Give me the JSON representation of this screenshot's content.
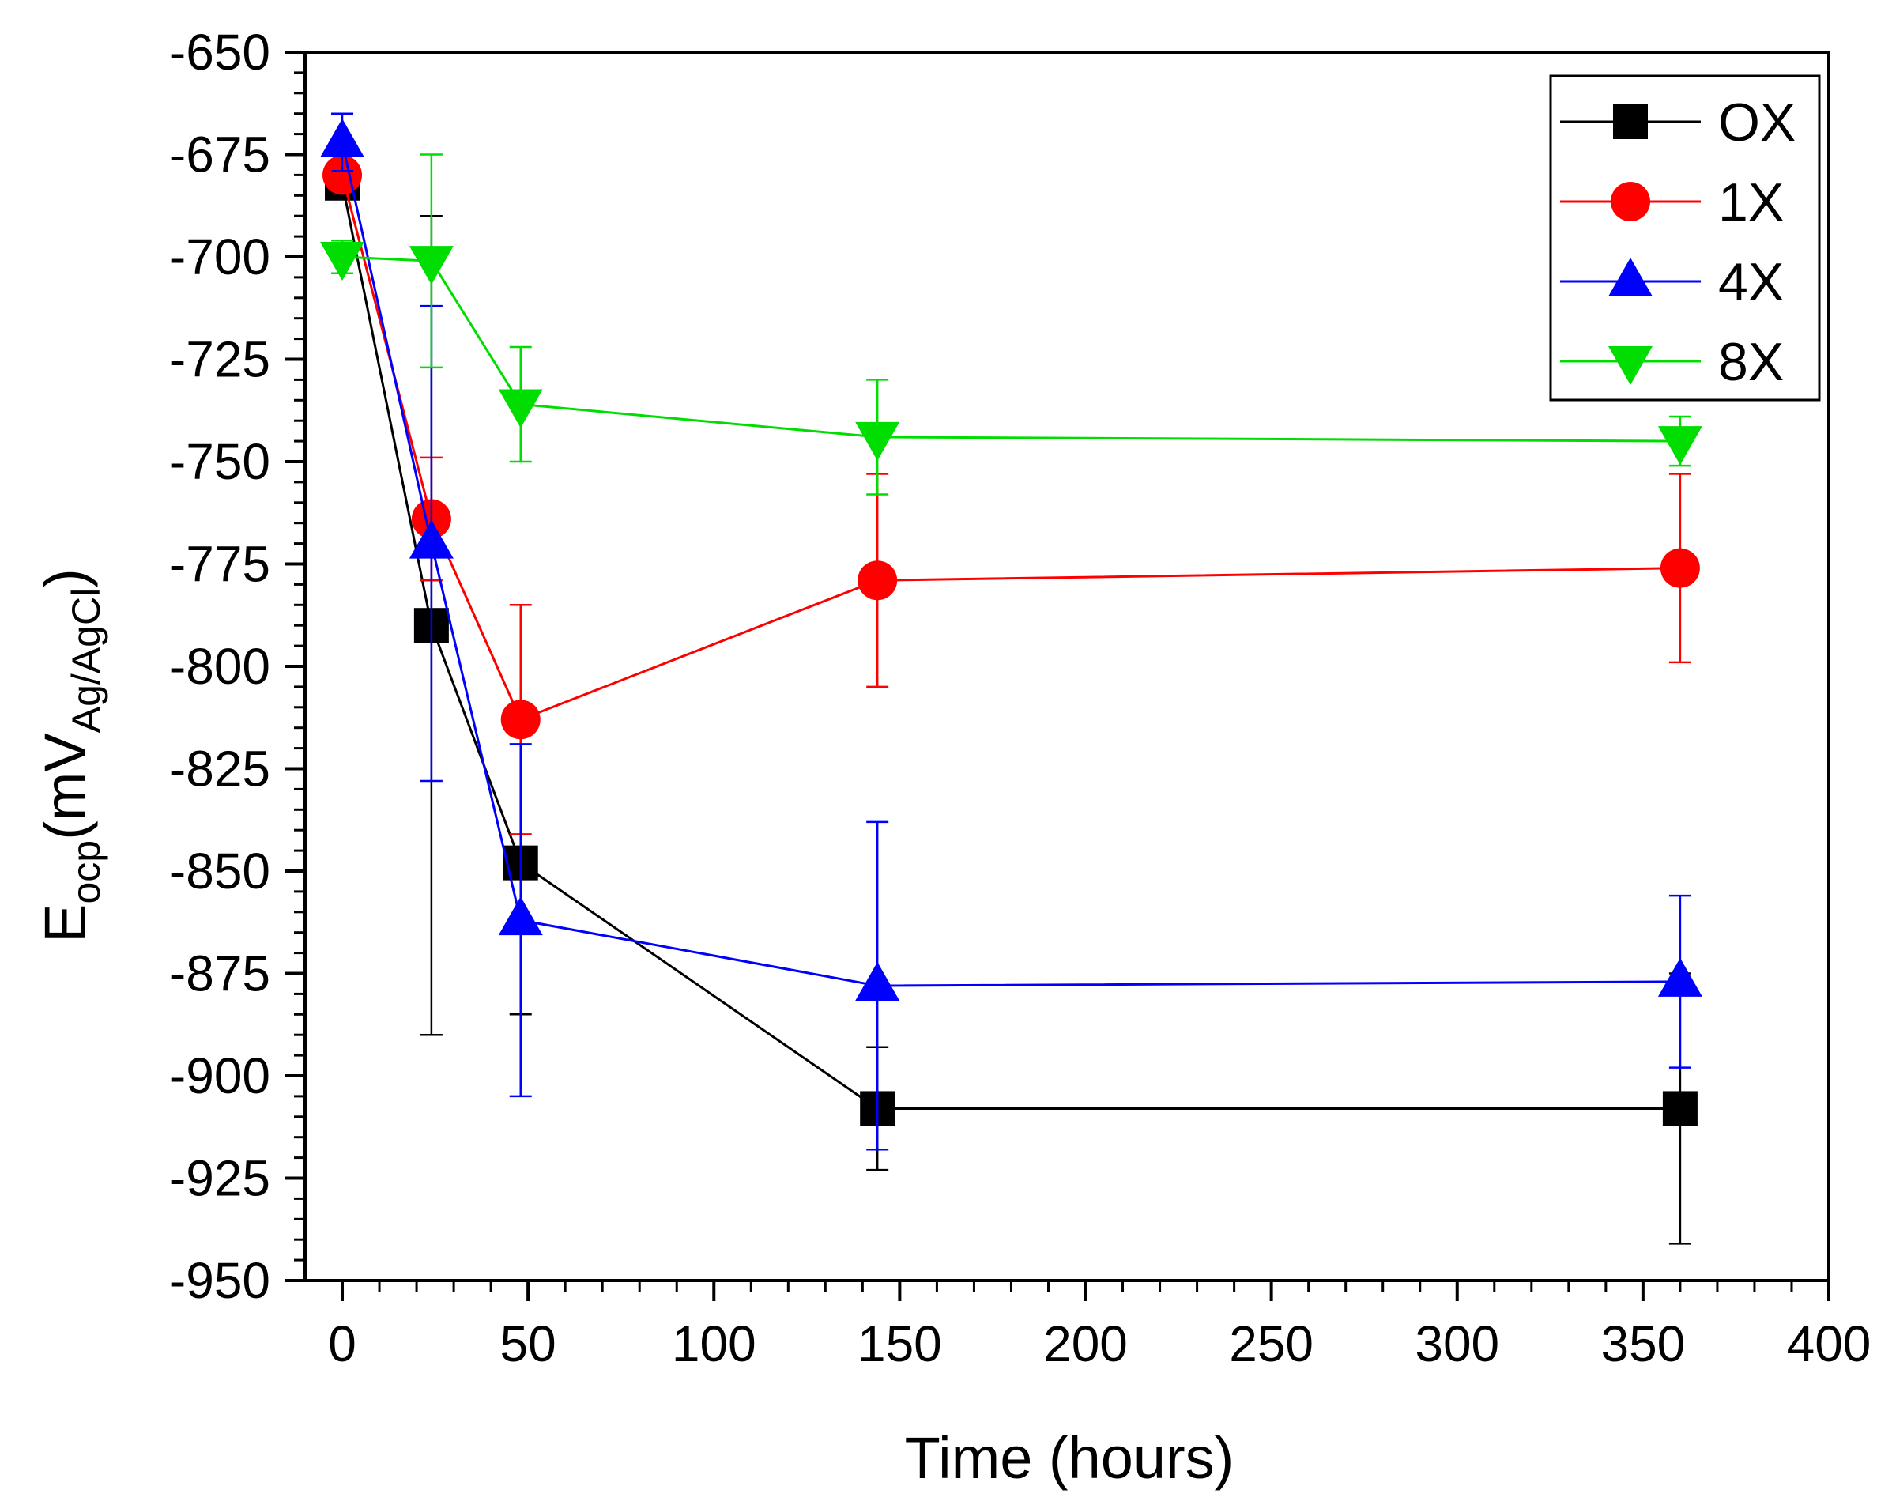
{
  "chart_data": {
    "type": "line",
    "title": "",
    "xlabel": "Time (hours)",
    "ylabel": {
      "main": "E",
      "main_sub": "ocp",
      "unit_open": "(mV",
      "unit_sub": "Ag/AgCl",
      "unit_close": ")"
    },
    "xlim": [
      -10,
      400
    ],
    "ylim": [
      -950,
      -650
    ],
    "x_ticks": [
      0,
      50,
      100,
      150,
      200,
      250,
      300,
      350,
      400
    ],
    "y_ticks": [
      -650,
      -675,
      -700,
      -725,
      -750,
      -775,
      -800,
      -825,
      -850,
      -875,
      -900,
      -925,
      -950
    ],
    "grid": false,
    "legend_position": "top-right",
    "series": [
      {
        "name": "OX",
        "color": "#000000",
        "marker": "square",
        "x": [
          0,
          24,
          48,
          144,
          360
        ],
        "y": [
          -682,
          -790,
          -848,
          -908,
          -908
        ],
        "err": [
          0,
          100,
          37,
          15,
          33
        ]
      },
      {
        "name": "1X",
        "color": "#ff0000",
        "marker": "circle",
        "x": [
          0,
          24,
          48,
          144,
          360
        ],
        "y": [
          -680,
          -764,
          -813,
          -779,
          -776
        ],
        "err": [
          0,
          15,
          28,
          26,
          23
        ]
      },
      {
        "name": "4X",
        "color": "#0000ff",
        "marker": "triangle-up",
        "x": [
          0,
          24,
          48,
          144,
          360
        ],
        "y": [
          -672,
          -770,
          -862,
          -878,
          -877
        ],
        "err": [
          7,
          58,
          43,
          40,
          21
        ]
      },
      {
        "name": "8X",
        "color": "#00dd00",
        "marker": "triangle-down",
        "x": [
          0,
          24,
          48,
          144,
          360
        ],
        "y": [
          -700,
          -701,
          -736,
          -744,
          -745
        ],
        "err": [
          4,
          26,
          14,
          14,
          6
        ]
      }
    ]
  }
}
